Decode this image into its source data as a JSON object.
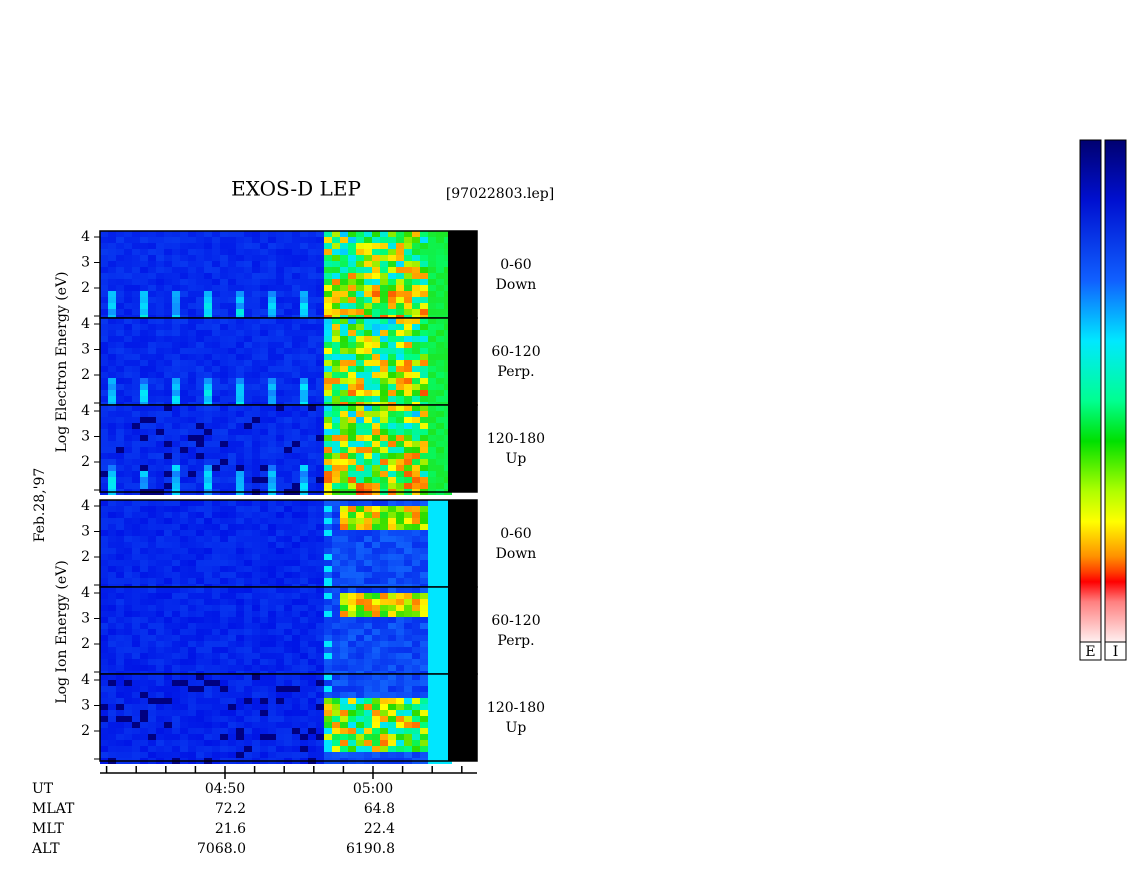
{
  "header": {
    "title": "EXOS-D LEP",
    "file": "[97022803.lep]",
    "date": "Feb.28,'97"
  },
  "panels": {
    "electron": {
      "label": "Log Electron Energy (eV)",
      "channels": [
        {
          "angle": "0-60",
          "direction": "Down"
        },
        {
          "angle": "60-120",
          "direction": "Perp."
        },
        {
          "angle": "120-180",
          "direction": "Up"
        }
      ]
    },
    "ion": {
      "label": "Log Ion Energy (eV)",
      "channels": [
        {
          "angle": "0-60",
          "direction": "Down"
        },
        {
          "angle": "60-120",
          "direction": "Perp."
        },
        {
          "angle": "120-180",
          "direction": "Up"
        }
      ]
    }
  },
  "energy_ticks": [
    2,
    3,
    4
  ],
  "ephemeris": [
    {
      "name": "UT",
      "values": [
        "04:50",
        "05:00"
      ]
    },
    {
      "name": "MLAT",
      "values": [
        72.2,
        64.8
      ]
    },
    {
      "name": "MLT",
      "values": [
        21.6,
        22.4
      ]
    },
    {
      "name": "ALT",
      "values": [
        "7068.0",
        "6190.8"
      ]
    }
  ],
  "colorbars": [
    "E",
    "I"
  ]
}
